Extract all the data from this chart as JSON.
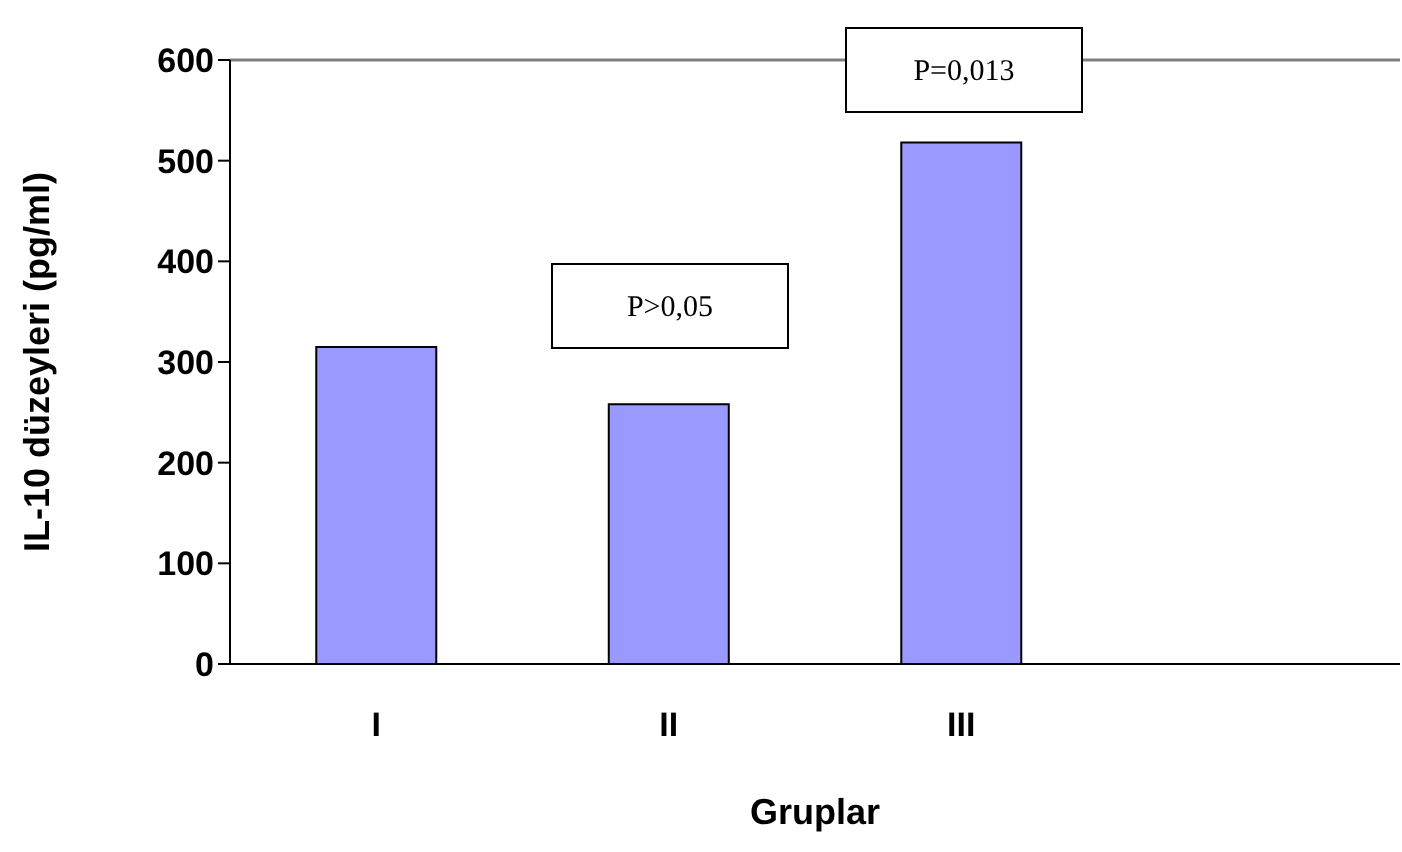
{
  "chart_data": {
    "type": "bar",
    "xlabel": "Gruplar",
    "ylabel": "IL-10 düzeyleri (pg/ml)",
    "categories": [
      "I",
      "II",
      "III",
      null
    ],
    "values": [
      315,
      258,
      518,
      null
    ],
    "color": "#9999ff",
    "ylim": [
      0,
      600
    ],
    "yticks": [
      0,
      100,
      200,
      300,
      400,
      500,
      600
    ],
    "ref_lines": [
      {
        "axis": "y",
        "value": 600,
        "color": "#808080"
      }
    ],
    "annotations": [
      "P>0,05",
      "P=0,013"
    ],
    "grid": false,
    "legend": false
  }
}
